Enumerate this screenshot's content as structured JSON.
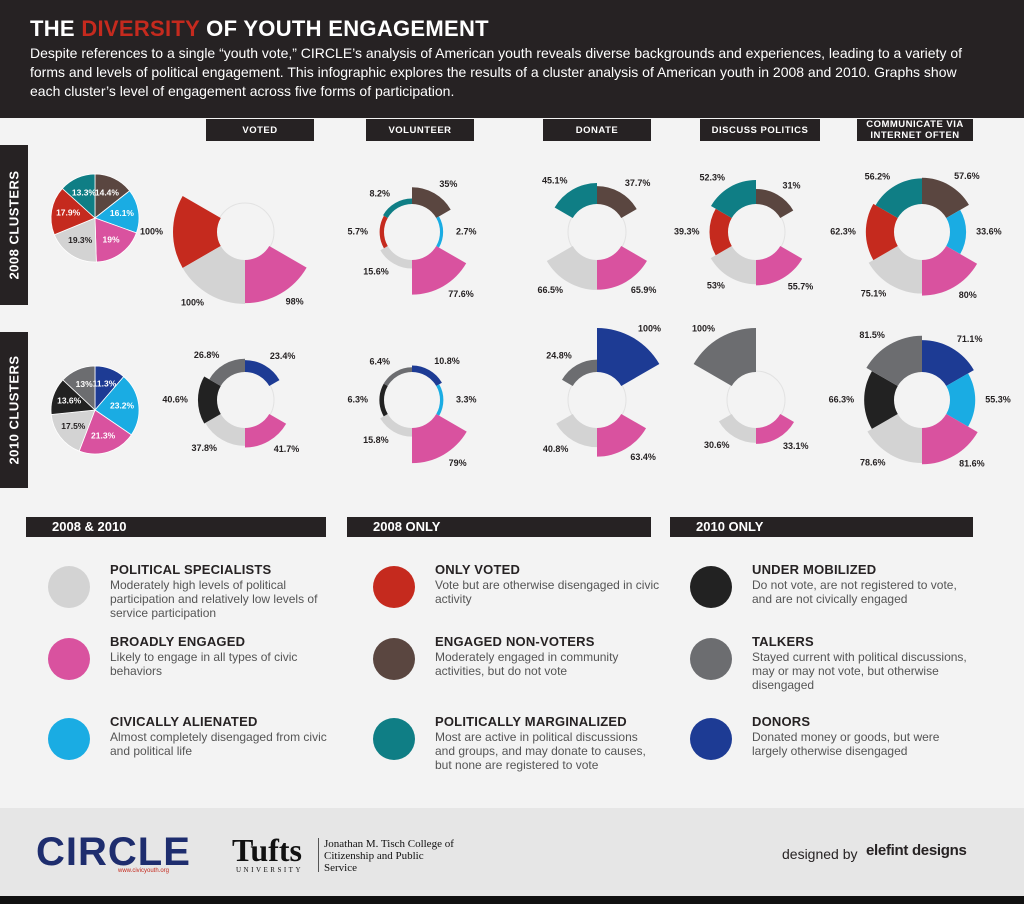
{
  "header": {
    "title_pre": "THE ",
    "title_accent": "DIVERSITY",
    "title_post": " OF YOUTH ENGAGEMENT",
    "subtitle": "Despite references to a single “youth vote,” CIRCLE’s analysis of American youth reveals diverse backgrounds and experiences, leading to a variety of forms and levels of political engagement. This infographic explores the results of a cluster analysis of American youth in 2008 and 2010. Graphs show each cluster’s level of engagement across five forms of participation."
  },
  "columns": [
    "VOTED",
    "VOLUNTEER",
    "DONATE",
    "DISCUSS POLITICS",
    "COMMUNICATE VIA INTERNET OFTEN"
  ],
  "rows": [
    "2008 CLUSTERS",
    "2010 CLUSTERS"
  ],
  "colors": {
    "political_specialists": "#d3d3d3",
    "broadly_engaged": "#d9529f",
    "civically_alienated": "#1aace3",
    "only_voted": "#c52a1e",
    "engaged_non_voters": "#5a4640",
    "politically_marginalized": "#0f7e85",
    "under_mobilized": "#222222",
    "talkers": "#6c6d70",
    "donors": "#1d3b94",
    "header_bg": "#262223",
    "accent": "#c52a1e"
  },
  "chart_data": [
    {
      "type": "pie",
      "title": "2008 CLUSTERS",
      "slices": [
        {
          "cluster": "engaged_non_voters",
          "value": 14.4,
          "label": "14.4%"
        },
        {
          "cluster": "civically_alienated",
          "value": 16.1,
          "label": "16.1%"
        },
        {
          "cluster": "broadly_engaged",
          "value": 19,
          "label": "19%"
        },
        {
          "cluster": "political_specialists",
          "value": 19.3,
          "label": "19.3%"
        },
        {
          "cluster": "only_voted",
          "value": 17.9,
          "label": "17.9%"
        },
        {
          "cluster": "politically_marginalized",
          "value": 13.3,
          "label": "13.3%"
        }
      ]
    },
    {
      "type": "pie",
      "title": "2010 CLUSTERS",
      "slices": [
        {
          "cluster": "donors",
          "value": 11.3,
          "label": "11.3%"
        },
        {
          "cluster": "civically_alienated",
          "value": 23.2,
          "label": "23.2%"
        },
        {
          "cluster": "broadly_engaged",
          "value": 21.3,
          "label": "21.3%"
        },
        {
          "cluster": "political_specialists",
          "value": 17.5,
          "label": "17.5%"
        },
        {
          "cluster": "under_mobilized",
          "value": 13.6,
          "label": "13.6%"
        },
        {
          "cluster": "talkers",
          "value": 13,
          "label": "13%"
        }
      ]
    },
    {
      "type": "radial-bar",
      "row": "2008 CLUSTERS",
      "column": "VOTED",
      "segments": [
        {
          "cluster": "only_voted",
          "value": 100,
          "label": "100%"
        },
        {
          "cluster": "broadly_engaged",
          "value": 98,
          "label": "98%"
        },
        {
          "cluster": "political_specialists",
          "value": 100,
          "label": "100%"
        }
      ]
    },
    {
      "type": "radial-bar",
      "row": "2008 CLUSTERS",
      "column": "VOLUNTEER",
      "segments": [
        {
          "cluster": "engaged_non_voters",
          "value": 35,
          "label": "35%"
        },
        {
          "cluster": "civically_alienated",
          "value": 2.7,
          "label": "2.7%"
        },
        {
          "cluster": "broadly_engaged",
          "value": 77.6,
          "label": "77.6%"
        },
        {
          "cluster": "political_specialists",
          "value": 15.6,
          "label": "15.6%"
        },
        {
          "cluster": "only_voted",
          "value": 5.7,
          "label": "5.7%"
        },
        {
          "cluster": "politically_marginalized",
          "value": 8.2,
          "label": "8.2%"
        }
      ]
    },
    {
      "type": "radial-bar",
      "row": "2008 CLUSTERS",
      "column": "DONATE",
      "segments": [
        {
          "cluster": "engaged_non_voters",
          "value": 37.7,
          "label": "37.7%"
        },
        {
          "cluster": "broadly_engaged",
          "value": 65.9,
          "label": "65.9%"
        },
        {
          "cluster": "political_specialists",
          "value": 66.5,
          "label": "66.5%"
        },
        {
          "cluster": "politically_marginalized",
          "value": 45.1,
          "label": "45.1%"
        }
      ]
    },
    {
      "type": "radial-bar",
      "row": "2008 CLUSTERS",
      "column": "DISCUSS POLITICS",
      "segments": [
        {
          "cluster": "engaged_non_voters",
          "value": 31,
          "label": "31%"
        },
        {
          "cluster": "broadly_engaged",
          "value": 55.7,
          "label": "55.7%"
        },
        {
          "cluster": "political_specialists",
          "value": 53,
          "label": "53%"
        },
        {
          "cluster": "only_voted",
          "value": 39.3,
          "label": "39.3%"
        },
        {
          "cluster": "politically_marginalized",
          "value": 52.3,
          "label": "52.3%"
        }
      ]
    },
    {
      "type": "radial-bar",
      "row": "2008 CLUSTERS",
      "column": "COMMUNICATE VIA INTERNET OFTEN",
      "segments": [
        {
          "cluster": "engaged_non_voters",
          "value": 57.6,
          "label": "57.6%"
        },
        {
          "cluster": "civically_alienated",
          "value": 33.6,
          "label": "33.6%"
        },
        {
          "cluster": "broadly_engaged",
          "value": 80,
          "label": "80%"
        },
        {
          "cluster": "political_specialists",
          "value": 75.1,
          "label": "75.1%"
        },
        {
          "cluster": "only_voted",
          "value": 62.3,
          "label": "62.3%"
        },
        {
          "cluster": "politically_marginalized",
          "value": 56.2,
          "label": "56.2%"
        }
      ]
    },
    {
      "type": "radial-bar",
      "row": "2010 CLUSTERS",
      "column": "VOTED",
      "segments": [
        {
          "cluster": "donors",
          "value": 23.4,
          "label": "23.4%"
        },
        {
          "cluster": "broadly_engaged",
          "value": 41.7,
          "label": "41.7%"
        },
        {
          "cluster": "political_specialists",
          "value": 37.8,
          "label": "37.8%"
        },
        {
          "cluster": "under_mobilized",
          "value": 40.6,
          "label": "40.6%"
        },
        {
          "cluster": "talkers",
          "value": 26.8,
          "label": "26.8%"
        }
      ]
    },
    {
      "type": "radial-bar",
      "row": "2010 CLUSTERS",
      "column": "VOLUNTEER",
      "segments": [
        {
          "cluster": "donors",
          "value": 10.8,
          "label": "10.8%"
        },
        {
          "cluster": "civically_alienated",
          "value": 3.3,
          "label": "3.3%"
        },
        {
          "cluster": "broadly_engaged",
          "value": 79,
          "label": "79%"
        },
        {
          "cluster": "political_specialists",
          "value": 15.8,
          "label": "15.8%"
        },
        {
          "cluster": "under_mobilized",
          "value": 6.3,
          "label": "6.3%"
        },
        {
          "cluster": "talkers",
          "value": 6.4,
          "label": "6.4%"
        }
      ]
    },
    {
      "type": "radial-bar",
      "row": "2010 CLUSTERS",
      "column": "DONATE",
      "segments": [
        {
          "cluster": "donors",
          "value": 100,
          "label": "100%"
        },
        {
          "cluster": "broadly_engaged",
          "value": 63.4,
          "label": "63.4%"
        },
        {
          "cluster": "political_specialists",
          "value": 40.8,
          "label": "40.8%"
        },
        {
          "cluster": "talkers",
          "value": 24.8,
          "label": "24.8%"
        }
      ]
    },
    {
      "type": "radial-bar",
      "row": "2010 CLUSTERS",
      "column": "DISCUSS POLITICS",
      "segments": [
        {
          "cluster": "broadly_engaged",
          "value": 33.1,
          "label": "33.1%"
        },
        {
          "cluster": "political_specialists",
          "value": 30.6,
          "label": "30.6%"
        },
        {
          "cluster": "talkers",
          "value": 100,
          "label": "100%"
        }
      ]
    },
    {
      "type": "radial-bar",
      "row": "2010 CLUSTERS",
      "column": "COMMUNICATE VIA INTERNET OFTEN",
      "segments": [
        {
          "cluster": "donors",
          "value": 71.1,
          "label": "71.1%"
        },
        {
          "cluster": "civically_alienated",
          "value": 55.3,
          "label": "55.3%"
        },
        {
          "cluster": "broadly_engaged",
          "value": 81.6,
          "label": "81.6%"
        },
        {
          "cluster": "political_specialists",
          "value": 78.6,
          "label": "78.6%"
        },
        {
          "cluster": "under_mobilized",
          "value": 66.3,
          "label": "66.3%"
        },
        {
          "cluster": "talkers",
          "value": 81.5,
          "label": "81.5%"
        }
      ]
    }
  ],
  "legend": {
    "groups": [
      "2008 & 2010",
      "2008 ONLY",
      "2010 ONLY"
    ],
    "items": [
      {
        "key": "political_specialists",
        "name": "POLITICAL SPECIALISTS",
        "desc": "Moderately high levels of political participation and relatively low levels of service participation"
      },
      {
        "key": "broadly_engaged",
        "name": "BROADLY ENGAGED",
        "desc": "Likely to engage in all types of civic behaviors"
      },
      {
        "key": "civically_alienated",
        "name": "CIVICALLY ALIENATED",
        "desc": "Almost completely disengaged from civic and political life"
      },
      {
        "key": "only_voted",
        "name": "ONLY VOTED",
        "desc": "Vote but are otherwise disengaged in civic activity"
      },
      {
        "key": "engaged_non_voters",
        "name": "ENGAGED NON-VOTERS",
        "desc": "Moderately engaged in community activities, but do not vote"
      },
      {
        "key": "politically_marginalized",
        "name": "POLITICALLY MARGINALIZED",
        "desc": "Most are active in political discussions and groups, and may donate to causes, but none are registered to vote"
      },
      {
        "key": "under_mobilized",
        "name": "UNDER MOBILIZED",
        "desc": "Do not vote, are not registered to vote, and are not civically engaged"
      },
      {
        "key": "talkers",
        "name": "TALKERS",
        "desc": "Stayed current with political discussions, may or may not vote, but otherwise disengaged"
      },
      {
        "key": "donors",
        "name": "DONORS",
        "desc": "Donated money or goods, but were largely otherwise disengaged"
      }
    ]
  },
  "footer": {
    "circle_logo": "CIRCLE",
    "circle_url": "www.civicyouth.org",
    "tufts_logo": "Tufts",
    "tufts_sub": "UNIVERSITY",
    "tisch": "Jonathan M. Tisch College of Citizenship and Public Service",
    "designed_by": "designed by",
    "elefint": "elefint designs"
  }
}
